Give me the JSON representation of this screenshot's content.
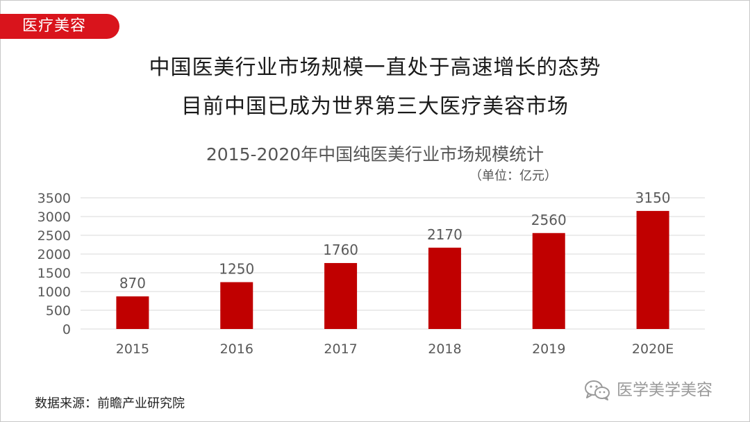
{
  "header": {
    "tag_label": "医疗美容",
    "headline_line1": "中国医美行业市场规模一直处于高速增长的态势",
    "headline_line2": "目前中国已成为世界第三大医疗美容市场"
  },
  "footer": {
    "source": "数据来源：前瞻产业研究院",
    "watermark": "医学美学美容",
    "watermark_icon": "wechat-icon"
  },
  "colors": {
    "accent": "#d9141c",
    "bar": "#c00000",
    "grid": "#d9d9d9",
    "axis_text": "#595959"
  },
  "chart_data": {
    "type": "bar",
    "title": "2015-2020年中国纯医美行业市场规模统计",
    "unit_note": "（单位：亿元）",
    "categories": [
      "2015",
      "2016",
      "2017",
      "2018",
      "2019",
      "2020E"
    ],
    "values": [
      870,
      1250,
      1760,
      2170,
      2560,
      3150
    ],
    "data_labels": [
      "870",
      "1250",
      "1760",
      "2170",
      "2560",
      "3150"
    ],
    "ylim": [
      0,
      3500
    ],
    "yticks": [
      0,
      500,
      1000,
      1500,
      2000,
      2500,
      3000,
      3500
    ],
    "grid": true,
    "legend": "none",
    "xlabel": "",
    "ylabel": ""
  }
}
